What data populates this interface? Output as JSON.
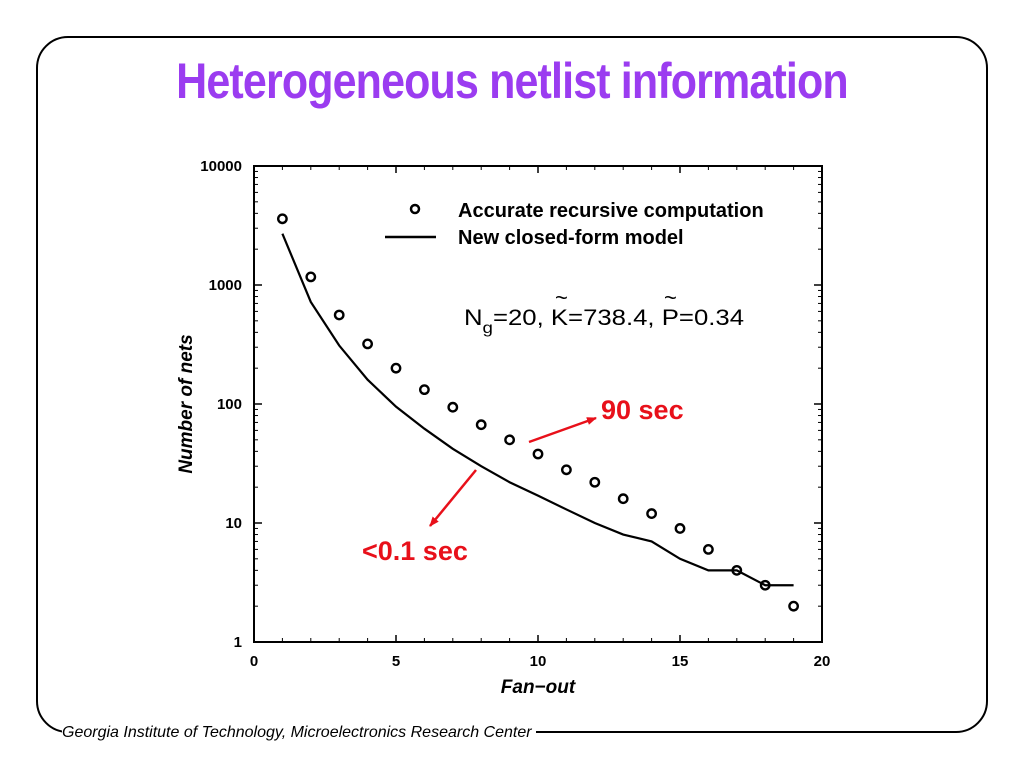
{
  "slide": {
    "title": "Heterogeneous netlist information",
    "footer": "Georgia Institute of Technology, Microelectronics Research Center"
  },
  "chart_data": {
    "type": "scatter",
    "xlabel": "Fan−out",
    "ylabel": "Number of nets",
    "xlim": [
      0,
      20
    ],
    "ylim": [
      1,
      10000
    ],
    "yscale": "log",
    "x_ticks": [
      "0",
      "5",
      "10",
      "15",
      "20"
    ],
    "y_ticks": [
      "1",
      "10",
      "100",
      "1000",
      "10000"
    ],
    "grid": false,
    "legend_position": "top-right",
    "series": [
      {
        "name": "Accurate recursive computation",
        "kind": "markers",
        "marker": "open-circle",
        "x": [
          1,
          2,
          3,
          4,
          5,
          6,
          7,
          8,
          9,
          10,
          11,
          12,
          13,
          14,
          15,
          16,
          17,
          18,
          19
        ],
        "values": [
          3600,
          1170,
          560,
          320,
          200,
          132,
          94,
          67,
          50,
          38,
          28,
          22,
          16,
          12,
          9,
          6,
          4,
          3,
          2
        ]
      },
      {
        "name": "New closed-form model",
        "kind": "line",
        "x": [
          1,
          2,
          3,
          4,
          5,
          6,
          7,
          8,
          9,
          10,
          11,
          12,
          13,
          14,
          15,
          16,
          17,
          18,
          19
        ],
        "values": [
          2700,
          720,
          310,
          160,
          95,
          62,
          42,
          30,
          22,
          17,
          13,
          10,
          8,
          7,
          5,
          4,
          4,
          3,
          3
        ]
      }
    ],
    "parameter_text": {
      "n_symbol": "N",
      "n_subscript": "g",
      "n_value": "=20, ",
      "k_symbol": "K",
      "k_value": "=738.4, ",
      "p_symbol": "P",
      "p_value": "=0.34",
      "tilde": "~"
    },
    "annotations": [
      {
        "label": "90 sec",
        "points_to": "Accurate recursive computation",
        "color": "#e8101a"
      },
      {
        "label": "<0.1 sec",
        "points_to": "New closed-form model",
        "color": "#e8101a"
      }
    ]
  }
}
